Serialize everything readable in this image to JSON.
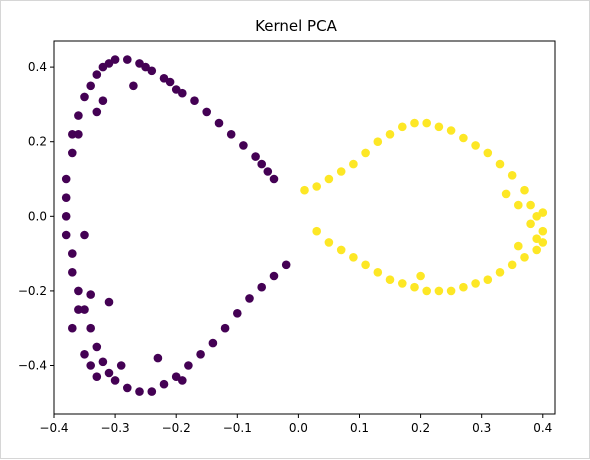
{
  "chart_data": {
    "type": "scatter",
    "title": "Kernel PCA",
    "xlabel": "",
    "ylabel": "",
    "xlim": [
      -0.4,
      0.42
    ],
    "ylim": [
      -0.53,
      0.47
    ],
    "xticks": [
      -0.4,
      -0.3,
      -0.2,
      -0.1,
      0.0,
      0.1,
      0.2,
      0.3,
      0.4
    ],
    "yticks": [
      -0.4,
      -0.2,
      0.0,
      0.2,
      0.4
    ],
    "xtick_labels": [
      "−0.4",
      "−0.3",
      "−0.2",
      "−0.1",
      "0.0",
      "0.1",
      "0.2",
      "0.3",
      "0.4"
    ],
    "ytick_labels": [
      "−0.4",
      "−0.2",
      "0.0",
      "0.2",
      "0.4"
    ],
    "grid": false,
    "series": [
      {
        "color": "#440154",
        "points": [
          [
            -0.04,
            0.1
          ],
          [
            -0.05,
            0.12
          ],
          [
            -0.06,
            0.14
          ],
          [
            -0.07,
            0.16
          ],
          [
            -0.09,
            0.19
          ],
          [
            -0.11,
            0.22
          ],
          [
            -0.13,
            0.25
          ],
          [
            -0.15,
            0.28
          ],
          [
            -0.17,
            0.31
          ],
          [
            -0.19,
            0.33
          ],
          [
            -0.2,
            0.34
          ],
          [
            -0.21,
            0.36
          ],
          [
            -0.22,
            0.37
          ],
          [
            -0.24,
            0.39
          ],
          [
            -0.25,
            0.4
          ],
          [
            -0.26,
            0.41
          ],
          [
            -0.28,
            0.42
          ],
          [
            -0.3,
            0.42
          ],
          [
            -0.31,
            0.41
          ],
          [
            -0.32,
            0.4
          ],
          [
            -0.33,
            0.38
          ],
          [
            -0.34,
            0.35
          ],
          [
            -0.35,
            0.32
          ],
          [
            -0.36,
            0.27
          ],
          [
            -0.37,
            0.22
          ],
          [
            -0.37,
            0.17
          ],
          [
            -0.38,
            0.1
          ],
          [
            -0.38,
            0.05
          ],
          [
            -0.38,
            0.0
          ],
          [
            -0.38,
            -0.05
          ],
          [
            -0.37,
            -0.1
          ],
          [
            -0.37,
            -0.15
          ],
          [
            -0.36,
            -0.2
          ],
          [
            -0.35,
            -0.25
          ],
          [
            -0.34,
            -0.3
          ],
          [
            -0.33,
            -0.35
          ],
          [
            -0.32,
            -0.39
          ],
          [
            -0.31,
            -0.42
          ],
          [
            -0.3,
            -0.44
          ],
          [
            -0.28,
            -0.46
          ],
          [
            -0.26,
            -0.47
          ],
          [
            -0.24,
            -0.47
          ],
          [
            -0.22,
            -0.45
          ],
          [
            -0.2,
            -0.43
          ],
          [
            -0.18,
            -0.4
          ],
          [
            -0.16,
            -0.37
          ],
          [
            -0.14,
            -0.34
          ],
          [
            -0.12,
            -0.3
          ],
          [
            -0.1,
            -0.26
          ],
          [
            -0.08,
            -0.22
          ],
          [
            -0.06,
            -0.19
          ],
          [
            -0.04,
            -0.16
          ],
          [
            -0.02,
            -0.13
          ],
          [
            -0.27,
            0.35
          ],
          [
            -0.33,
            0.28
          ],
          [
            -0.36,
            0.22
          ],
          [
            -0.32,
            0.31
          ],
          [
            -0.35,
            -0.05
          ],
          [
            -0.34,
            -0.21
          ],
          [
            -0.31,
            -0.23
          ],
          [
            -0.37,
            -0.3
          ],
          [
            -0.35,
            -0.37
          ],
          [
            -0.36,
            -0.25
          ],
          [
            -0.29,
            -0.4
          ],
          [
            -0.23,
            -0.38
          ],
          [
            -0.19,
            -0.44
          ],
          [
            -0.34,
            -0.4
          ],
          [
            -0.33,
            -0.43
          ]
        ]
      },
      {
        "color": "#fde725",
        "points": [
          [
            0.01,
            0.07
          ],
          [
            0.03,
            0.08
          ],
          [
            0.05,
            0.1
          ],
          [
            0.07,
            0.12
          ],
          [
            0.09,
            0.14
          ],
          [
            0.11,
            0.17
          ],
          [
            0.13,
            0.2
          ],
          [
            0.15,
            0.22
          ],
          [
            0.17,
            0.24
          ],
          [
            0.19,
            0.25
          ],
          [
            0.21,
            0.25
          ],
          [
            0.23,
            0.24
          ],
          [
            0.25,
            0.23
          ],
          [
            0.27,
            0.21
          ],
          [
            0.29,
            0.19
          ],
          [
            0.31,
            0.17
          ],
          [
            0.33,
            0.14
          ],
          [
            0.35,
            0.11
          ],
          [
            0.37,
            0.07
          ],
          [
            0.38,
            0.03
          ],
          [
            0.39,
            0.0
          ],
          [
            0.4,
            -0.04
          ],
          [
            0.4,
            -0.07
          ],
          [
            0.39,
            -0.09
          ],
          [
            0.37,
            -0.11
          ],
          [
            0.35,
            -0.13
          ],
          [
            0.33,
            -0.15
          ],
          [
            0.31,
            -0.17
          ],
          [
            0.29,
            -0.18
          ],
          [
            0.27,
            -0.19
          ],
          [
            0.25,
            -0.2
          ],
          [
            0.23,
            -0.2
          ],
          [
            0.21,
            -0.2
          ],
          [
            0.19,
            -0.19
          ],
          [
            0.17,
            -0.18
          ],
          [
            0.15,
            -0.17
          ],
          [
            0.13,
            -0.15
          ],
          [
            0.11,
            -0.13
          ],
          [
            0.09,
            -0.11
          ],
          [
            0.07,
            -0.09
          ],
          [
            0.05,
            -0.07
          ],
          [
            0.03,
            -0.04
          ],
          [
            0.2,
            -0.16
          ],
          [
            0.36,
            0.03
          ],
          [
            0.38,
            -0.02
          ],
          [
            0.34,
            0.06
          ],
          [
            0.39,
            -0.06
          ],
          [
            0.4,
            0.01
          ],
          [
            0.36,
            -0.08
          ]
        ]
      }
    ]
  }
}
